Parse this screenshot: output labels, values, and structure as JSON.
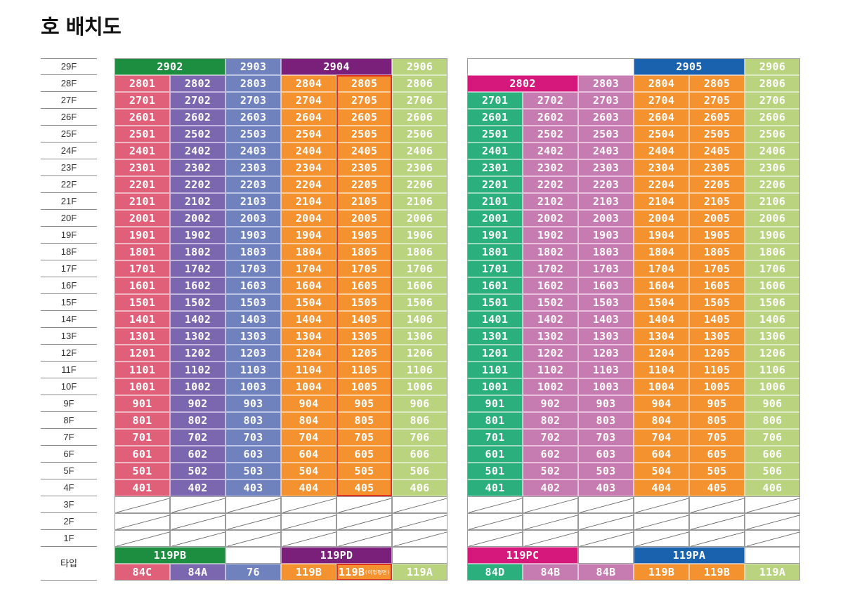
{
  "title": "호 배치도",
  "floor_labels": [
    "29F",
    "28F",
    "27F",
    "26F",
    "25F",
    "24F",
    "23F",
    "22F",
    "21F",
    "20F",
    "19F",
    "18F",
    "17F",
    "16F",
    "15F",
    "14F",
    "13F",
    "12F",
    "11F",
    "10F",
    "9F",
    "8F",
    "7F",
    "6F",
    "5F",
    "4F",
    "3F",
    "2F",
    "1F"
  ],
  "type_label": "타입",
  "colors": {
    "pink": "#e0607a",
    "purple": "#7b67b0",
    "slate": "#6f82bd",
    "orange": "#f3922e",
    "lime": "#b9d37e",
    "green": "#2bb07d",
    "mauve": "#c77cb1",
    "darkgreen": "#1d8d3f",
    "darkpurple": "#7a1f7a",
    "magenta": "#d6187d",
    "blue": "#1a62ad"
  },
  "buildings": [
    {
      "name": "left",
      "x": 163,
      "columns": [
        {
          "color": "pink",
          "units_start_floor": 28,
          "unit_suffix": "01"
        },
        {
          "color": "purple",
          "units_start_floor": 28,
          "unit_suffix": "02"
        },
        {
          "color": "slate",
          "units_start_floor": 28,
          "unit_suffix": "03"
        },
        {
          "color": "orange",
          "units_start_floor": 28,
          "unit_suffix": "04"
        },
        {
          "color": "orange",
          "units_start_floor": 28,
          "unit_suffix": "05",
          "highlight": true
        },
        {
          "color": "lime",
          "units_start_floor": 28,
          "unit_suffix": "06"
        }
      ],
      "top_units": [
        {
          "label": "2902",
          "color": "darkgreen",
          "col": 0,
          "span": 2
        },
        {
          "label": "2903",
          "color": "slate",
          "col": 2,
          "span": 1
        },
        {
          "label": "2904",
          "color": "darkpurple",
          "col": 3,
          "span": 2
        },
        {
          "label": "2906",
          "color": "lime",
          "col": 5,
          "span": 1
        }
      ],
      "type_groups": [
        {
          "label": "119PB",
          "color": "darkgreen",
          "col": 0,
          "span": 2
        },
        {
          "label": "119PD",
          "color": "darkpurple",
          "col": 3,
          "span": 2
        }
      ],
      "types": [
        {
          "label": "84C",
          "color": "pink"
        },
        {
          "label": "84A",
          "color": "purple"
        },
        {
          "label": "76",
          "color": "slate"
        },
        {
          "label": "119B",
          "color": "orange"
        },
        {
          "label": "119B",
          "note": "(이형평면)",
          "color": "orange",
          "highlight": true
        },
        {
          "label": "119A",
          "color": "lime"
        }
      ]
    },
    {
      "name": "right",
      "x": 665,
      "columns": [
        {
          "color": "green",
          "units_start_floor": 27,
          "unit_suffix": "01"
        },
        {
          "color": "mauve",
          "units_start_floor": 27,
          "unit_suffix": "02"
        },
        {
          "color": "mauve",
          "units_start_floor": 28,
          "unit_suffix": "03"
        },
        {
          "color": "orange",
          "units_start_floor": 28,
          "unit_suffix": "04"
        },
        {
          "color": "orange",
          "units_start_floor": 28,
          "unit_suffix": "05"
        },
        {
          "color": "lime",
          "units_start_floor": 28,
          "unit_suffix": "06"
        }
      ],
      "top_units": [
        {
          "label": "2905",
          "color": "blue",
          "col": 3,
          "span": 2
        },
        {
          "label": "2906",
          "color": "lime",
          "col": 5,
          "span": 1
        }
      ],
      "row28_units": [
        {
          "label": "2802",
          "color": "magenta",
          "col": 0,
          "span": 2
        }
      ],
      "type_groups": [
        {
          "label": "119PC",
          "color": "magenta",
          "col": 0,
          "span": 2
        },
        {
          "label": "119PA",
          "color": "blue",
          "col": 3,
          "span": 2
        }
      ],
      "types": [
        {
          "label": "84D",
          "color": "green"
        },
        {
          "label": "84B",
          "color": "mauve"
        },
        {
          "label": "84B",
          "color": "mauve"
        },
        {
          "label": "119B",
          "color": "orange"
        },
        {
          "label": "119B",
          "color": "orange"
        },
        {
          "label": "119A",
          "color": "lime"
        }
      ]
    }
  ]
}
